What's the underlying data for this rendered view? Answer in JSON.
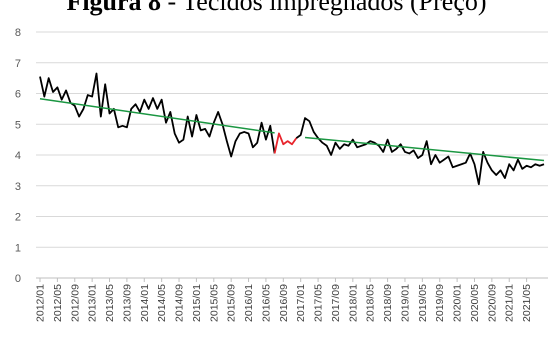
{
  "figure_label": "Figura 8",
  "figure_title": "- Tecidos impregnados (Preço)",
  "chart_data": {
    "type": "line",
    "ylim": [
      0,
      8
    ],
    "yticks": [
      0,
      1,
      2,
      3,
      4,
      5,
      6,
      7,
      8
    ],
    "grid": "horizontal",
    "x_tick_labels": [
      "2012/01",
      "2012/05",
      "2012/09",
      "2013/01",
      "2013/05",
      "2013/09",
      "2014/01",
      "2014/05",
      "2014/09",
      "2015/01",
      "2015/05",
      "2015/09",
      "2016/01",
      "2016/05",
      "2016/09",
      "2017/01",
      "2017/05",
      "2017/09",
      "2018/01",
      "2018/05",
      "2018/09",
      "2019/01",
      "2019/05",
      "2019/09",
      "2020/01",
      "2020/05",
      "2020/09",
      "2021/01",
      "2021/05"
    ],
    "series": [
      {
        "color": "#000000",
        "segment": "before",
        "x": [
          1,
          2,
          3,
          4,
          5,
          6,
          7,
          8,
          9,
          10,
          11,
          12,
          13,
          14,
          15,
          16,
          17,
          18,
          19,
          20,
          21,
          22,
          23,
          24,
          25,
          26,
          27,
          28,
          29,
          30,
          31,
          32,
          33,
          34,
          35,
          36,
          37,
          38,
          39,
          40,
          41,
          42,
          43,
          44,
          45,
          46,
          47,
          48,
          49,
          50,
          51,
          52,
          53,
          54,
          55
        ],
        "values": [
          6.55,
          5.9,
          6.5,
          6.05,
          6.2,
          5.8,
          6.1,
          5.7,
          5.6,
          5.25,
          5.5,
          5.95,
          5.9,
          6.65,
          5.25,
          6.3,
          5.35,
          5.5,
          4.9,
          4.95,
          4.9,
          5.5,
          5.65,
          5.4,
          5.8,
          5.5,
          5.85,
          5.5,
          5.8,
          5.05,
          5.4,
          4.7,
          4.4,
          4.5,
          5.25,
          4.6,
          5.3,
          4.8,
          4.85,
          4.6,
          5.05,
          5.4,
          5.0,
          4.45,
          3.95,
          4.45,
          4.7,
          4.75,
          4.7,
          4.25,
          4.4,
          5.05,
          4.5,
          4.95,
          4.05
        ]
      },
      {
        "color": "#e8242c",
        "segment": "transition",
        "x": [
          55,
          56,
          57,
          58,
          59,
          60
        ],
        "values": [
          4.05,
          4.7,
          4.35,
          4.45,
          4.35,
          4.55
        ]
      },
      {
        "color": "#000000",
        "segment": "after",
        "x": [
          60,
          61,
          62,
          63,
          64,
          65,
          66,
          67,
          68,
          69,
          70,
          71,
          72,
          73,
          74,
          75,
          76,
          77,
          78,
          79,
          80,
          81,
          82,
          83,
          84,
          85,
          86,
          87,
          88,
          89,
          90,
          91,
          92,
          93,
          94,
          95,
          96,
          97,
          98,
          99,
          100,
          101,
          102,
          103,
          104,
          105,
          106,
          107,
          108,
          109,
          110,
          111,
          112,
          113,
          114,
          115,
          116,
          117
        ],
        "values": [
          4.55,
          4.65,
          5.2,
          5.1,
          4.75,
          4.55,
          4.4,
          4.3,
          4.0,
          4.4,
          4.2,
          4.35,
          4.3,
          4.5,
          4.25,
          4.3,
          4.35,
          4.45,
          4.4,
          4.3,
          4.1,
          4.5,
          4.1,
          4.2,
          4.35,
          4.1,
          4.05,
          4.15,
          3.9,
          4.0,
          4.45,
          3.7,
          4.0,
          3.75,
          3.85,
          3.95,
          3.6,
          3.65,
          3.7,
          3.75,
          4.05,
          3.7,
          3.05,
          4.1,
          3.75,
          3.5,
          3.35,
          3.5,
          3.25,
          3.7,
          3.5,
          3.85,
          3.55,
          3.65,
          3.6,
          3.7,
          3.65,
          3.7
        ]
      },
      {
        "color": "#1a9641",
        "segment": "trend-before",
        "x": [
          1,
          55
        ],
        "values": [
          5.83,
          4.72
        ]
      },
      {
        "color": "#1a9641",
        "segment": "trend-after",
        "x": [
          62,
          117
        ],
        "values": [
          4.57,
          3.82
        ]
      }
    ]
  }
}
